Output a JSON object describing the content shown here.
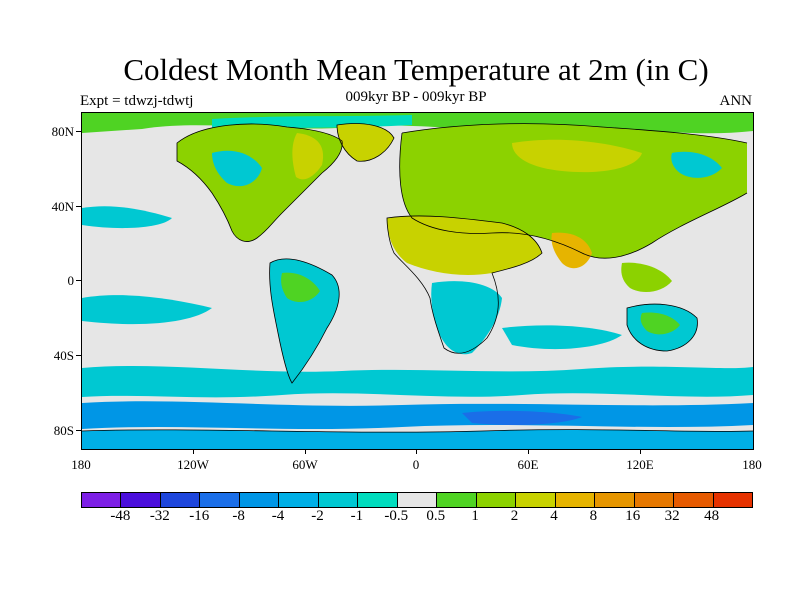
{
  "header": {
    "title": "Coldest Month Mean Temperature at 2m (in C)",
    "subtitle": "009kyr BP - 009kyr BP",
    "experiment": "Expt = tdwzj-tdwtj",
    "season": "ANN"
  },
  "map": {
    "lat_ticks": [
      "80N",
      "40N",
      "0",
      "40S",
      "80S"
    ],
    "lon_ticks": [
      "180",
      "120W",
      "60W",
      "0",
      "60E",
      "120E",
      "180"
    ],
    "background_color": "#e6e6e6",
    "land_warm_color": "#4fd323",
    "ocean_light_color": "#00c8c8"
  },
  "colorbar": {
    "colors": [
      "#7d1fe6",
      "#4b0fdc",
      "#1e46dc",
      "#1a6ee8",
      "#0096e6",
      "#00afe6",
      "#00c8d2",
      "#00dcbe",
      "#e6e6e6",
      "#4fd323",
      "#8cd200",
      "#c8d200",
      "#e6b400",
      "#e69600",
      "#e67800",
      "#e65a00",
      "#e63200"
    ],
    "labels": [
      "-48",
      "-32",
      "-16",
      "-8",
      "-4",
      "-2",
      "-1",
      "-0.5",
      "0.5",
      "1",
      "2",
      "4",
      "8",
      "16",
      "32",
      "48"
    ]
  }
}
